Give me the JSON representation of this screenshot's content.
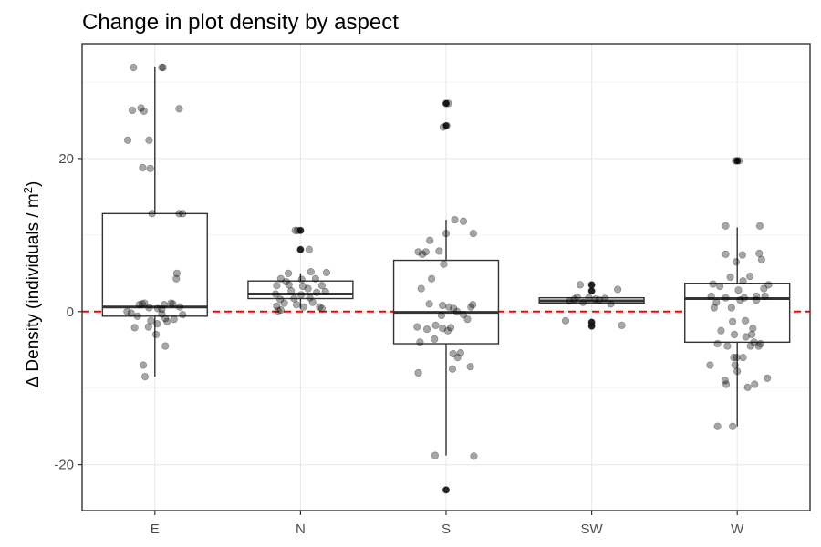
{
  "chart_data": {
    "type": "box",
    "title": "Change in plot density by aspect",
    "xlabel": "",
    "ylabel": {
      "delta": "Δ",
      "main": "Density (individuals / m",
      "sup": "2",
      "close": ")"
    },
    "categories": [
      "E",
      "N",
      "S",
      "SW",
      "W"
    ],
    "ylim": [
      -26,
      35
    ],
    "y_ticks": [
      -20,
      0,
      20
    ],
    "y_tick_labels": [
      "-20",
      "0",
      "20"
    ],
    "grid": true,
    "reference_line": {
      "y": 0,
      "color": "#ff0000",
      "style": "dashed"
    },
    "boxes": [
      {
        "category": "E",
        "q1": -0.6,
        "median": 0.6,
        "q3": 12.8,
        "whisker_low": -8.5,
        "whisker_high": 32.0,
        "outliers": []
      },
      {
        "category": "N",
        "q1": 1.7,
        "median": 2.3,
        "q3": 4.0,
        "whisker_low": 0.4,
        "whisker_high": 5.0,
        "outliers": [
          8.1,
          10.6
        ]
      },
      {
        "category": "S",
        "q1": -4.2,
        "median": -0.1,
        "q3": 6.7,
        "whisker_low": -18.8,
        "whisker_high": 12.0,
        "outliers": [
          24.3,
          27.2,
          -23.3
        ]
      },
      {
        "category": "SW",
        "q1": 1.1,
        "median": 1.4,
        "q3": 1.8,
        "whisker_low": 1.1,
        "whisker_high": 1.8,
        "outliers": [
          2.7,
          3.5,
          -1.4,
          -1.9
        ]
      },
      {
        "category": "W",
        "q1": -4.0,
        "median": 1.7,
        "q3": 3.7,
        "whisker_low": -15.0,
        "whisker_high": 11.0,
        "outliers": [
          19.7
        ]
      }
    ],
    "points": [
      {
        "category": "E",
        "x_jitter": -0.47,
        "y": 22.4
      },
      {
        "category": "E",
        "x_jitter": -0.37,
        "y": 31.9
      },
      {
        "category": "E",
        "x_jitter": -0.39,
        "y": 26.3
      },
      {
        "category": "E",
        "x_jitter": -0.24,
        "y": 26.6
      },
      {
        "category": "E",
        "x_jitter": -0.19,
        "y": 26.2
      },
      {
        "category": "E",
        "x_jitter": -0.21,
        "y": 18.8
      },
      {
        "category": "E",
        "x_jitter": -0.08,
        "y": 18.7
      },
      {
        "category": "E",
        "x_jitter": -0.1,
        "y": 22.4
      },
      {
        "category": "E",
        "x_jitter": 0.12,
        "y": 31.9
      },
      {
        "category": "E",
        "x_jitter": 0.14,
        "y": 31.9
      },
      {
        "category": "E",
        "x_jitter": 0.42,
        "y": 26.5
      },
      {
        "category": "E",
        "x_jitter": 0.42,
        "y": 12.8
      },
      {
        "category": "E",
        "x_jitter": 0.48,
        "y": 12.8
      },
      {
        "category": "E",
        "x_jitter": -0.05,
        "y": 12.8
      },
      {
        "category": "E",
        "x_jitter": 0.38,
        "y": 5.0
      },
      {
        "category": "E",
        "x_jitter": 0.37,
        "y": 4.3
      },
      {
        "category": "E",
        "x_jitter": -0.27,
        "y": 0.9
      },
      {
        "category": "E",
        "x_jitter": -0.22,
        "y": 1.0
      },
      {
        "category": "E",
        "x_jitter": -0.18,
        "y": 1.1
      },
      {
        "category": "E",
        "x_jitter": -0.1,
        "y": 0.5
      },
      {
        "category": "E",
        "x_jitter": 0.05,
        "y": 0.4
      },
      {
        "category": "E",
        "x_jitter": 0.12,
        "y": 0.3
      },
      {
        "category": "E",
        "x_jitter": 0.16,
        "y": 0.9
      },
      {
        "category": "E",
        "x_jitter": 0.28,
        "y": 1.1
      },
      {
        "category": "E",
        "x_jitter": 0.31,
        "y": 1.0
      },
      {
        "category": "E",
        "x_jitter": 0.43,
        "y": 0.6
      },
      {
        "category": "E",
        "x_jitter": 0.48,
        "y": -0.4
      },
      {
        "category": "E",
        "x_jitter": -0.48,
        "y": 0.0
      },
      {
        "category": "E",
        "x_jitter": -0.41,
        "y": -0.2
      },
      {
        "category": "E",
        "x_jitter": -0.3,
        "y": -0.6
      },
      {
        "category": "E",
        "x_jitter": -0.07,
        "y": -1.2
      },
      {
        "category": "E",
        "x_jitter": 0.04,
        "y": -1.6
      },
      {
        "category": "E",
        "x_jitter": 0.12,
        "y": -0.3
      },
      {
        "category": "E",
        "x_jitter": 0.18,
        "y": -0.9
      },
      {
        "category": "E",
        "x_jitter": 0.21,
        "y": -1.3
      },
      {
        "category": "E",
        "x_jitter": 0.33,
        "y": -1.0
      },
      {
        "category": "E",
        "x_jitter": -0.35,
        "y": -2.1
      },
      {
        "category": "E",
        "x_jitter": -0.11,
        "y": -2.0
      },
      {
        "category": "E",
        "x_jitter": 0.02,
        "y": -3.0
      },
      {
        "category": "E",
        "x_jitter": 0.18,
        "y": -4.5
      },
      {
        "category": "E",
        "x_jitter": -0.2,
        "y": -7.0
      },
      {
        "category": "E",
        "x_jitter": -0.17,
        "y": -8.5
      },
      {
        "category": "N",
        "x_jitter": -0.34,
        "y": 4.3
      },
      {
        "category": "N",
        "x_jitter": -0.41,
        "y": 3.4
      },
      {
        "category": "N",
        "x_jitter": -0.43,
        "y": 2.3
      },
      {
        "category": "N",
        "x_jitter": -0.41,
        "y": 0.7
      },
      {
        "category": "N",
        "x_jitter": -0.35,
        "y": 1.6
      },
      {
        "category": "N",
        "x_jitter": -0.34,
        "y": 0.2
      },
      {
        "category": "N",
        "x_jitter": -0.39,
        "y": 0.1
      },
      {
        "category": "N",
        "x_jitter": -0.21,
        "y": 5.0
      },
      {
        "category": "N",
        "x_jitter": -0.2,
        "y": 3.5
      },
      {
        "category": "N",
        "x_jitter": -0.16,
        "y": 2.7
      },
      {
        "category": "N",
        "x_jitter": -0.11,
        "y": 1.7
      },
      {
        "category": "N",
        "x_jitter": -0.07,
        "y": 0.9
      },
      {
        "category": "N",
        "x_jitter": 0.01,
        "y": 2.2
      },
      {
        "category": "N",
        "x_jitter": 0.04,
        "y": 3.3
      },
      {
        "category": "N",
        "x_jitter": 0.02,
        "y": 4.2
      },
      {
        "category": "N",
        "x_jitter": -0.09,
        "y": 10.6
      },
      {
        "category": "N",
        "x_jitter": -0.05,
        "y": 10.6
      },
      {
        "category": "N",
        "x_jitter": 0.0,
        "y": 10.6
      },
      {
        "category": "N",
        "x_jitter": 0.0,
        "y": 8.1
      },
      {
        "category": "N",
        "x_jitter": 0.15,
        "y": 8.1
      },
      {
        "category": "N",
        "x_jitter": 0.13,
        "y": 3.0
      },
      {
        "category": "N",
        "x_jitter": 0.16,
        "y": 1.8
      },
      {
        "category": "N",
        "x_jitter": 0.21,
        "y": 1.2
      },
      {
        "category": "N",
        "x_jitter": 0.18,
        "y": 5.2
      },
      {
        "category": "N",
        "x_jitter": 0.26,
        "y": 4.3
      },
      {
        "category": "N",
        "x_jitter": 0.28,
        "y": 2.5
      },
      {
        "category": "N",
        "x_jitter": 0.33,
        "y": 0.6
      },
      {
        "category": "N",
        "x_jitter": 0.37,
        "y": 3.4
      },
      {
        "category": "N",
        "x_jitter": 0.45,
        "y": 5.1
      },
      {
        "category": "N",
        "x_jitter": 0.43,
        "y": 2.6
      },
      {
        "category": "N",
        "x_jitter": 0.37,
        "y": 0.4
      },
      {
        "category": "N",
        "x_jitter": -0.28,
        "y": 1.1
      },
      {
        "category": "N",
        "x_jitter": -0.25,
        "y": 3.9
      },
      {
        "category": "N",
        "x_jitter": 0.05,
        "y": 0.6
      },
      {
        "category": "S",
        "x_jitter": -0.48,
        "y": 7.8
      },
      {
        "category": "S",
        "x_jitter": -0.41,
        "y": 7.5
      },
      {
        "category": "S",
        "x_jitter": -0.35,
        "y": 7.8
      },
      {
        "category": "S",
        "x_jitter": -0.28,
        "y": 9.3
      },
      {
        "category": "S",
        "x_jitter": -0.12,
        "y": 7.9
      },
      {
        "category": "S",
        "x_jitter": 0.0,
        "y": 10.2
      },
      {
        "category": "S",
        "x_jitter": -0.04,
        "y": 6.2
      },
      {
        "category": "S",
        "x_jitter": 0.15,
        "y": 12.0
      },
      {
        "category": "S",
        "x_jitter": 0.3,
        "y": 11.8
      },
      {
        "category": "S",
        "x_jitter": 0.47,
        "y": 10.2
      },
      {
        "category": "S",
        "x_jitter": -0.25,
        "y": 4.3
      },
      {
        "category": "S",
        "x_jitter": -0.43,
        "y": 3.0
      },
      {
        "category": "S",
        "x_jitter": -0.29,
        "y": 1.0
      },
      {
        "category": "S",
        "x_jitter": -0.06,
        "y": 0.8
      },
      {
        "category": "S",
        "x_jitter": 0.05,
        "y": 0.6
      },
      {
        "category": "S",
        "x_jitter": 0.13,
        "y": 0.4
      },
      {
        "category": "S",
        "x_jitter": 0.19,
        "y": 0.0
      },
      {
        "category": "S",
        "x_jitter": 0.3,
        "y": -0.4
      },
      {
        "category": "S",
        "x_jitter": 0.43,
        "y": 0.6
      },
      {
        "category": "S",
        "x_jitter": 0.46,
        "y": 0.9
      },
      {
        "category": "S",
        "x_jitter": -0.5,
        "y": -2.0
      },
      {
        "category": "S",
        "x_jitter": -0.45,
        "y": -4.0
      },
      {
        "category": "S",
        "x_jitter": -0.33,
        "y": -2.3
      },
      {
        "category": "S",
        "x_jitter": -0.18,
        "y": -1.8
      },
      {
        "category": "S",
        "x_jitter": -0.06,
        "y": -2.2
      },
      {
        "category": "S",
        "x_jitter": 0.03,
        "y": -2.5
      },
      {
        "category": "S",
        "x_jitter": 0.12,
        "y": -5.5
      },
      {
        "category": "S",
        "x_jitter": 0.2,
        "y": -6.0
      },
      {
        "category": "S",
        "x_jitter": 0.25,
        "y": -5.4
      },
      {
        "category": "S",
        "x_jitter": 0.11,
        "y": -7.5
      },
      {
        "category": "S",
        "x_jitter": 0.42,
        "y": -7.2
      },
      {
        "category": "S",
        "x_jitter": -0.48,
        "y": -8.0
      },
      {
        "category": "S",
        "x_jitter": -0.2,
        "y": -3.6
      },
      {
        "category": "S",
        "x_jitter": 0.37,
        "y": -1.0
      },
      {
        "category": "S",
        "x_jitter": -0.08,
        "y": -0.5
      },
      {
        "category": "S",
        "x_jitter": 0.08,
        "y": -2.1
      },
      {
        "category": "S",
        "x_jitter": 0.04,
        "y": 27.2
      },
      {
        "category": "S",
        "x_jitter": 0.0,
        "y": 27.2
      },
      {
        "category": "S",
        "x_jitter": -0.05,
        "y": 24.1
      },
      {
        "category": "S",
        "x_jitter": 0.01,
        "y": 24.3
      },
      {
        "category": "S",
        "x_jitter": -0.19,
        "y": -18.8
      },
      {
        "category": "S",
        "x_jitter": 0.48,
        "y": -18.9
      },
      {
        "category": "S",
        "x_jitter": 0.0,
        "y": -23.3
      },
      {
        "category": "SW",
        "x_jitter": -0.38,
        "y": 1.4
      },
      {
        "category": "SW",
        "x_jitter": -0.3,
        "y": 1.6
      },
      {
        "category": "SW",
        "x_jitter": -0.25,
        "y": 1.9
      },
      {
        "category": "SW",
        "x_jitter": -0.2,
        "y": 3.5
      },
      {
        "category": "SW",
        "x_jitter": -0.15,
        "y": 1.2
      },
      {
        "category": "SW",
        "x_jitter": -0.05,
        "y": 1.8
      },
      {
        "category": "SW",
        "x_jitter": 0.0,
        "y": 3.5
      },
      {
        "category": "SW",
        "x_jitter": 0.0,
        "y": 2.7
      },
      {
        "category": "SW",
        "x_jitter": 0.0,
        "y": -1.4
      },
      {
        "category": "SW",
        "x_jitter": 0.0,
        "y": -1.9
      },
      {
        "category": "SW",
        "x_jitter": 0.06,
        "y": 1.6
      },
      {
        "category": "SW",
        "x_jitter": 0.13,
        "y": 1.5
      },
      {
        "category": "SW",
        "x_jitter": 0.23,
        "y": 1.7
      },
      {
        "category": "SW",
        "x_jitter": 0.33,
        "y": 1.0
      },
      {
        "category": "SW",
        "x_jitter": 0.45,
        "y": 2.9
      },
      {
        "category": "SW",
        "x_jitter": -0.45,
        "y": -1.2
      },
      {
        "category": "SW",
        "x_jitter": 0.52,
        "y": -1.8
      },
      {
        "category": "W",
        "x_jitter": -0.42,
        "y": 3.6
      },
      {
        "category": "W",
        "x_jitter": -0.45,
        "y": 2.0
      },
      {
        "category": "W",
        "x_jitter": -0.4,
        "y": 0.5
      },
      {
        "category": "W",
        "x_jitter": -0.36,
        "y": 1.2
      },
      {
        "category": "W",
        "x_jitter": -0.3,
        "y": 3.3
      },
      {
        "category": "W",
        "x_jitter": -0.47,
        "y": -7.0
      },
      {
        "category": "W",
        "x_jitter": -0.34,
        "y": -4.2
      },
      {
        "category": "W",
        "x_jitter": -0.28,
        "y": -2.5
      },
      {
        "category": "W",
        "x_jitter": -0.2,
        "y": 7.5
      },
      {
        "category": "W",
        "x_jitter": -0.2,
        "y": 1.8
      },
      {
        "category": "W",
        "x_jitter": -0.21,
        "y": -9.0
      },
      {
        "category": "W",
        "x_jitter": -0.19,
        "y": -9.5
      },
      {
        "category": "W",
        "x_jitter": -0.34,
        "y": -15.0
      },
      {
        "category": "W",
        "x_jitter": -0.17,
        "y": -4.5
      },
      {
        "category": "W",
        "x_jitter": -0.12,
        "y": 4.5
      },
      {
        "category": "W",
        "x_jitter": -0.1,
        "y": 0.5
      },
      {
        "category": "W",
        "x_jitter": -0.08,
        "y": -1.3
      },
      {
        "category": "W",
        "x_jitter": -0.05,
        "y": -3.0
      },
      {
        "category": "W",
        "x_jitter": -0.03,
        "y": 19.7
      },
      {
        "category": "W",
        "x_jitter": 0.0,
        "y": 19.7
      },
      {
        "category": "W",
        "x_jitter": 0.03,
        "y": 19.7
      },
      {
        "category": "W",
        "x_jitter": -0.02,
        "y": 6.5
      },
      {
        "category": "W",
        "x_jitter": 0.02,
        "y": 2.8
      },
      {
        "category": "W",
        "x_jitter": 0.05,
        "y": 1.5
      },
      {
        "category": "W",
        "x_jitter": -0.06,
        "y": -6.0
      },
      {
        "category": "W",
        "x_jitter": -0.01,
        "y": -6.0
      },
      {
        "category": "W",
        "x_jitter": -0.04,
        "y": -7.0
      },
      {
        "category": "W",
        "x_jitter": 0.0,
        "y": -7.8
      },
      {
        "category": "W",
        "x_jitter": 0.09,
        "y": 7.4
      },
      {
        "category": "W",
        "x_jitter": 0.1,
        "y": 4.0
      },
      {
        "category": "W",
        "x_jitter": 0.12,
        "y": 1.8
      },
      {
        "category": "W",
        "x_jitter": 0.14,
        "y": -1.2
      },
      {
        "category": "W",
        "x_jitter": 0.15,
        "y": -3.3
      },
      {
        "category": "W",
        "x_jitter": 0.1,
        "y": -6.0
      },
      {
        "category": "W",
        "x_jitter": 0.18,
        "y": -9.9
      },
      {
        "category": "W",
        "x_jitter": 0.22,
        "y": 4.6
      },
      {
        "category": "W",
        "x_jitter": 0.25,
        "y": -3.0
      },
      {
        "category": "W",
        "x_jitter": 0.27,
        "y": -2.2
      },
      {
        "category": "W",
        "x_jitter": 0.29,
        "y": -4.0
      },
      {
        "category": "W",
        "x_jitter": 0.3,
        "y": -9.5
      },
      {
        "category": "W",
        "x_jitter": 0.33,
        "y": 1.5
      },
      {
        "category": "W",
        "x_jitter": 0.33,
        "y": 2.0
      },
      {
        "category": "W",
        "x_jitter": 0.37,
        "y": -4.5
      },
      {
        "category": "W",
        "x_jitter": 0.38,
        "y": 7.6
      },
      {
        "category": "W",
        "x_jitter": 0.39,
        "y": 11.2
      },
      {
        "category": "W",
        "x_jitter": 0.4,
        "y": -4.2
      },
      {
        "category": "W",
        "x_jitter": 0.42,
        "y": 6.8
      },
      {
        "category": "W",
        "x_jitter": 0.46,
        "y": 3.0
      },
      {
        "category": "W",
        "x_jitter": 0.48,
        "y": 2.0
      },
      {
        "category": "W",
        "x_jitter": 0.52,
        "y": -8.7
      },
      {
        "category": "W",
        "x_jitter": 0.54,
        "y": 3.5
      },
      {
        "category": "W",
        "x_jitter": -0.2,
        "y": 11.2
      },
      {
        "category": "W",
        "x_jitter": -0.08,
        "y": -15.0
      },
      {
        "category": "W",
        "x_jitter": 0.23,
        "y": -4.5
      }
    ]
  }
}
